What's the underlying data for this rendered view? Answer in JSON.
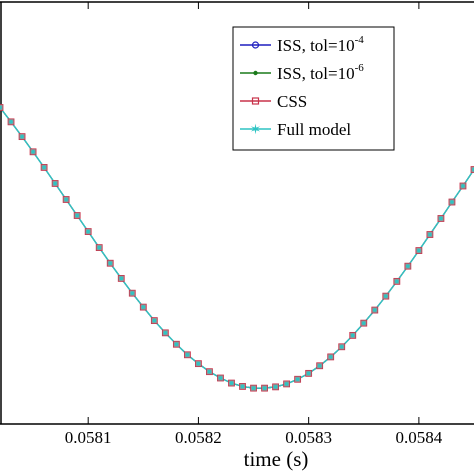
{
  "chart_data": {
    "type": "line",
    "xlabel": "time (s)",
    "ylabel": "",
    "xlim": [
      0.05802,
      0.05845
    ],
    "ylim": [
      0,
      1
    ],
    "x_ticks": [
      "0.0581",
      "0.0582",
      "0.0583",
      "0.0584"
    ],
    "grid": false,
    "legend_position": "top-right",
    "legend": [
      {
        "name": "ISS, tol=10",
        "sup": "-4",
        "color": "#1f1fbf",
        "marker": "circle"
      },
      {
        "name": "ISS, tol=10",
        "sup": "-6",
        "color": "#1a7a1a",
        "marker": "dot"
      },
      {
        "name": "CSS",
        "color": "#c8324a",
        "marker": "square"
      },
      {
        "name": "Full model",
        "color": "#2ec4c4",
        "marker": "star"
      }
    ],
    "x": [
      0.05802,
      0.05803,
      0.05804,
      0.05805,
      0.05806,
      0.05807,
      0.05808,
      0.05809,
      0.0581,
      0.05811,
      0.05812,
      0.05813,
      0.05814,
      0.05815,
      0.05816,
      0.05817,
      0.05818,
      0.05819,
      0.0582,
      0.05821,
      0.05822,
      0.05823,
      0.05824,
      0.05825,
      0.05826,
      0.05827,
      0.05828,
      0.05829,
      0.0583,
      0.05831,
      0.05832,
      0.05833,
      0.05834,
      0.05835,
      0.05836,
      0.05837,
      0.05838,
      0.05839,
      0.0584,
      0.05841,
      0.05842,
      0.05843,
      0.05844,
      0.05845
    ],
    "y": [
      0.75,
      0.716,
      0.681,
      0.645,
      0.608,
      0.57,
      0.532,
      0.494,
      0.456,
      0.418,
      0.381,
      0.345,
      0.31,
      0.277,
      0.245,
      0.216,
      0.189,
      0.164,
      0.143,
      0.124,
      0.109,
      0.097,
      0.089,
      0.085,
      0.085,
      0.088,
      0.095,
      0.106,
      0.12,
      0.138,
      0.159,
      0.183,
      0.21,
      0.239,
      0.27,
      0.303,
      0.338,
      0.374,
      0.411,
      0.449,
      0.487,
      0.526,
      0.564,
      0.603
    ],
    "series": [
      {
        "name": "ISS, tol=10^-4",
        "color": "#1f1fbf"
      },
      {
        "name": "ISS, tol=10^-6",
        "color": "#1a7a1a"
      },
      {
        "name": "CSS",
        "color": "#c8324a"
      },
      {
        "name": "Full model",
        "color": "#2ec4c4"
      }
    ]
  }
}
